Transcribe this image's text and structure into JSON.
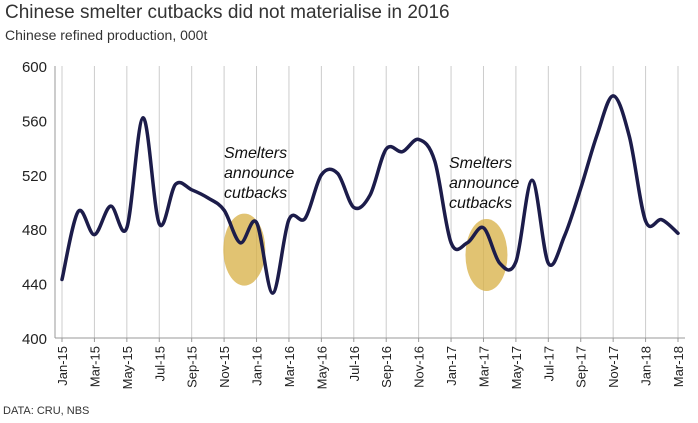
{
  "header": {
    "title": "Chinese smelter cutbacks did not materialise in 2016",
    "subtitle": "Chinese refined production, 000t"
  },
  "footer": {
    "source": "DATA: CRU, NBS"
  },
  "chart_data": {
    "type": "line",
    "title": "Chinese smelter cutbacks did not materialise in 2016",
    "subtitle": "Chinese refined production, 000t",
    "xlabel": "",
    "ylabel": "",
    "ylim": [
      400,
      600
    ],
    "yticks": [
      400,
      440,
      480,
      520,
      560,
      600
    ],
    "xtick_labels": [
      "Jan-15",
      "Mar-15",
      "May-15",
      "Jul-15",
      "Sep-15",
      "Nov-15",
      "Jan-16",
      "Mar-16",
      "May-16",
      "Jul-16",
      "Sep-16",
      "Nov-16",
      "Jan-17",
      "Mar-17",
      "May-17",
      "Jul-17",
      "Sep-17",
      "Nov-17",
      "Jan-18",
      "Mar-18"
    ],
    "x": [
      "Jan-15",
      "Feb-15",
      "Mar-15",
      "Apr-15",
      "May-15",
      "Jun-15",
      "Jul-15",
      "Aug-15",
      "Sep-15",
      "Oct-15",
      "Nov-15",
      "Dec-15",
      "Jan-16",
      "Feb-16",
      "Mar-16",
      "Apr-16",
      "May-16",
      "Jun-16",
      "Jul-16",
      "Aug-16",
      "Sep-16",
      "Oct-16",
      "Nov-16",
      "Dec-16",
      "Jan-17",
      "Feb-17",
      "Mar-17",
      "Apr-17",
      "May-17",
      "Jun-17",
      "Jul-17",
      "Aug-17",
      "Sep-17",
      "Oct-17",
      "Nov-17",
      "Dec-17",
      "Jan-18",
      "Feb-18",
      "Mar-18"
    ],
    "series": [
      {
        "name": "",
        "color": "#1c1c4a",
        "values": [
          443,
          493,
          476,
          497,
          481,
          562,
          484,
          513,
          509,
          503,
          494,
          470,
          485,
          433,
          487,
          488,
          520,
          521,
          496,
          505,
          539,
          537,
          546,
          530,
          470,
          470,
          481,
          455,
          456,
          516,
          455,
          475,
          510,
          549,
          578,
          548,
          486,
          487,
          477
        ]
      }
    ],
    "annotations": [
      {
        "text_lines": [
          "Smelters",
          "announce",
          "cutbacks"
        ],
        "x": "Dec-15",
        "y": 465,
        "highlight_color": "#d9b24a"
      },
      {
        "text_lines": [
          "Smelters",
          "announce",
          "cutbacks"
        ],
        "x": "Mar-17",
        "y": 461,
        "highlight_color": "#d9b24a"
      }
    ],
    "grid": {
      "vertical": true,
      "horizontal": false,
      "color": "#cccccc"
    },
    "legend": "none"
  }
}
